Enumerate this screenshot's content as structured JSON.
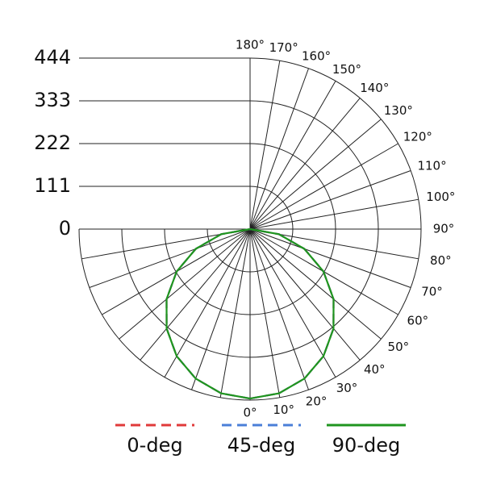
{
  "chart_data": {
    "type": "polar",
    "angles": [
      0,
      10,
      20,
      30,
      40,
      50,
      60,
      70,
      80,
      90
    ],
    "series": [
      {
        "name": "0-deg",
        "color": "#e03a3a",
        "dash": true,
        "values": [
          440,
          433,
          413,
          381,
          337,
          283,
          220,
          150,
          76,
          0
        ]
      },
      {
        "name": "45-deg",
        "color": "#4a7fd8",
        "dash": true,
        "values": [
          440,
          433,
          413,
          381,
          337,
          283,
          220,
          150,
          76,
          0
        ]
      },
      {
        "name": "90-deg",
        "color": "#1f951f",
        "dash": false,
        "values": [
          440,
          433,
          413,
          381,
          337,
          283,
          220,
          150,
          76,
          0
        ]
      }
    ],
    "rlim": [
      0,
      444
    ],
    "rticks": [
      0,
      111,
      222,
      333,
      444
    ],
    "angle_ticks": [
      {
        "value": 0,
        "label": "0°"
      },
      {
        "value": 10,
        "label": "10°"
      },
      {
        "value": 20,
        "label": "20°"
      },
      {
        "value": 30,
        "label": "30°"
      },
      {
        "value": 40,
        "label": "40°"
      },
      {
        "value": 50,
        "label": "50°"
      },
      {
        "value": 60,
        "label": "60°"
      },
      {
        "value": 70,
        "label": "70°"
      },
      {
        "value": 80,
        "label": "80°"
      },
      {
        "value": 90,
        "label": "90°"
      },
      {
        "value": 100,
        "label": "100°"
      },
      {
        "value": 110,
        "label": "110°"
      },
      {
        "value": 120,
        "label": "120°"
      },
      {
        "value": 130,
        "label": "130°"
      },
      {
        "value": 140,
        "label": "140°"
      },
      {
        "value": 150,
        "label": "150°"
      },
      {
        "value": 160,
        "label": "160°"
      },
      {
        "value": 170,
        "label": "170°"
      },
      {
        "value": 180,
        "label": "180°"
      }
    ]
  }
}
